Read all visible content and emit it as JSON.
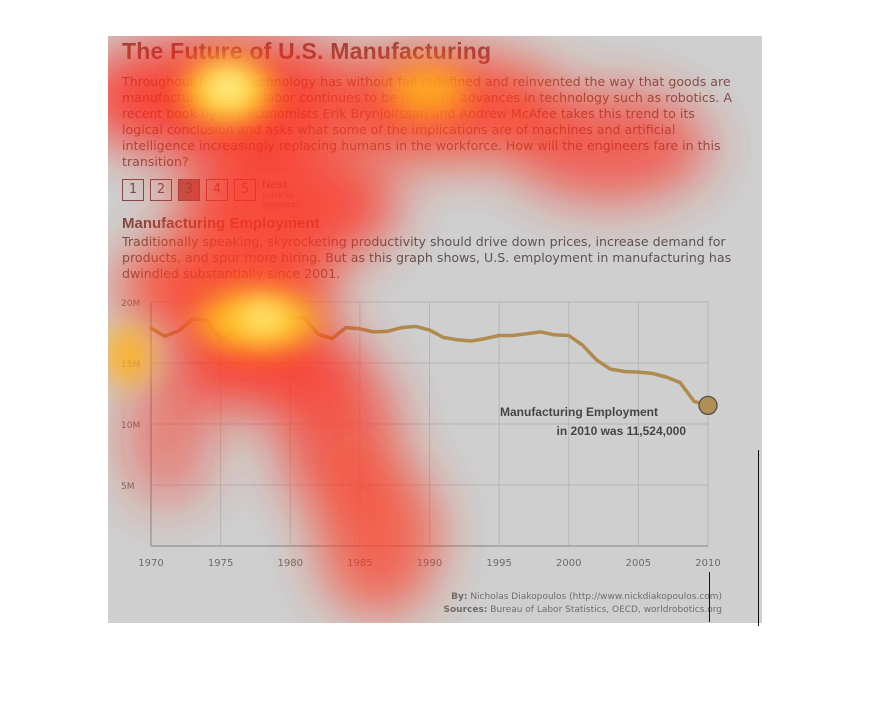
{
  "title": "The Future of U.S. Manufacturing",
  "intro": "Throughout history technology has without fail redefined and reinvented the way that goods are manufactured. Today, labor continues to be offset by advances in technology such as robotics. A recent book by MIT economists Erik Brynjolfsson and Andrew McAfee takes this trend to its logical conclusion and asks what some of the implications are of machines and artificial intelligence increasingly replacing humans in the workforce. How will the engineers fare in this transition?",
  "pager": {
    "pages": [
      "1",
      "2",
      "3",
      "4",
      "5"
    ],
    "active_index": 2,
    "next_label": "Next",
    "next_hint": "(click to advance)"
  },
  "section": {
    "title": "Manufacturing Employment",
    "text": "Traditionally speaking, skyrocketing productivity should drive down prices, increase demand for products, and spur more hiring. But as this graph shows, U.S. employment in manufacturing has dwindled substantially since 2001."
  },
  "credits": {
    "by_label": "By:",
    "by_text": "Nicholas Diakopoulos (http://www.nickdiakopoulos.com)",
    "sources_label": "Sources:",
    "sources_text": "Bureau of Labor Statistics, OECD, worldrobotics.org"
  },
  "colors": {
    "line": "#c88a24",
    "marker_fill": "#c8922e",
    "title": "#7a1a12",
    "grid": "#d4d4d4"
  },
  "chart_data": {
    "type": "line",
    "title": "",
    "xlabel": "",
    "ylabel": "",
    "xlim": [
      1970,
      2010
    ],
    "ylim": [
      0,
      20000000
    ],
    "x_ticks": [
      1970,
      1975,
      1980,
      1985,
      1990,
      1995,
      2000,
      2005,
      2010
    ],
    "x_tick_labels": [
      "1970",
      "1975",
      "1980",
      "1985",
      "1990",
      "1995",
      "2000",
      "2005",
      "2010"
    ],
    "y_ticks": [
      5000000,
      10000000,
      15000000,
      20000000
    ],
    "y_tick_labels": [
      "5M",
      "10M",
      "15M",
      "20M"
    ],
    "grid": true,
    "series": [
      {
        "x": [
          1970,
          1971,
          1972,
          1973,
          1974,
          1975,
          1976,
          1977,
          1978,
          1979,
          1980,
          1981,
          1982,
          1983,
          1984,
          1985,
          1986,
          1987,
          1988,
          1989,
          1990,
          1991,
          1992,
          1993,
          1994,
          1995,
          1996,
          1997,
          1998,
          1999,
          2000,
          2001,
          2002,
          2003,
          2004,
          2005,
          2006,
          2007,
          2008,
          2009,
          2010
        ],
        "values": [
          17850000,
          17200000,
          17650000,
          18600000,
          18500000,
          16950000,
          17600000,
          18250000,
          18950000,
          19450000,
          18750000,
          18700000,
          17350000,
          17000000,
          17900000,
          17800000,
          17550000,
          17600000,
          17900000,
          18000000,
          17700000,
          17100000,
          16900000,
          16800000,
          17000000,
          17250000,
          17250000,
          17400000,
          17550000,
          17300000,
          17250000,
          16450000,
          15250000,
          14500000,
          14300000,
          14250000,
          14150000,
          13850000,
          13400000,
          11850000,
          11524000
        ]
      }
    ],
    "highlight": {
      "x": 2010,
      "value": 11524000,
      "label_line1": "Manufacturing Employment",
      "label_line2": "in 2010 was 11,524,000"
    }
  }
}
